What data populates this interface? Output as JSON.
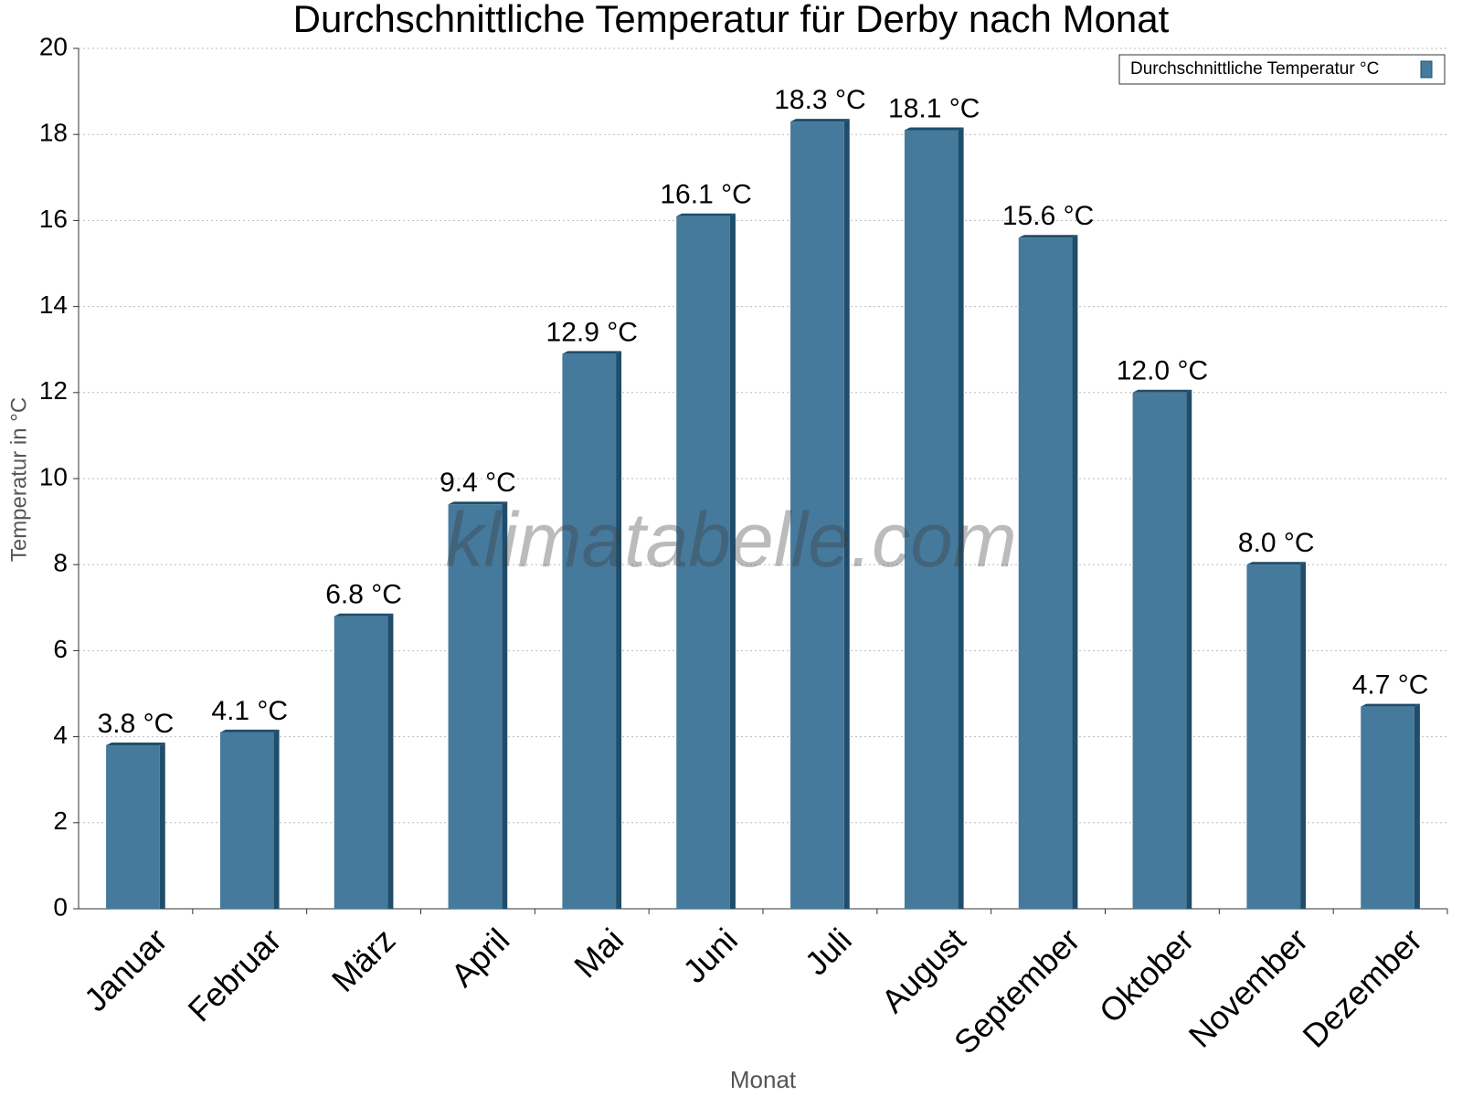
{
  "chart_data": {
    "type": "bar",
    "title": "Durchschnittliche Temperatur für Derby nach Monat",
    "x_label": "Monat",
    "y_label": "Temperatur in °C",
    "watermark": "klimatabelle.com",
    "categories": [
      "Januar",
      "Februar",
      "März",
      "April",
      "Mai",
      "Juni",
      "Juli",
      "August",
      "September",
      "Oktober",
      "November",
      "Dezember"
    ],
    "series": [
      {
        "name": "Durchschnittliche Temperatur °C",
        "color": "#467a9c",
        "values": [
          3.8,
          4.1,
          6.8,
          9.4,
          12.9,
          16.1,
          18.3,
          18.1,
          15.6,
          12.0,
          8.0,
          4.7
        ],
        "value_labels": [
          "3.8 °C",
          "4.1 °C",
          "6.8 °C",
          "9.4 °C",
          "12.9 °C",
          "16.1 °C",
          "18.3 °C",
          "18.1 °C",
          "15.6 °C",
          "12.0 °C",
          "8.0 °C",
          "4.7 °C"
        ]
      }
    ],
    "ylim": [
      0,
      20
    ],
    "yticks": [
      0,
      2,
      4,
      6,
      8,
      10,
      12,
      14,
      16,
      18,
      20
    ],
    "grid": true,
    "legend": "top-right"
  }
}
